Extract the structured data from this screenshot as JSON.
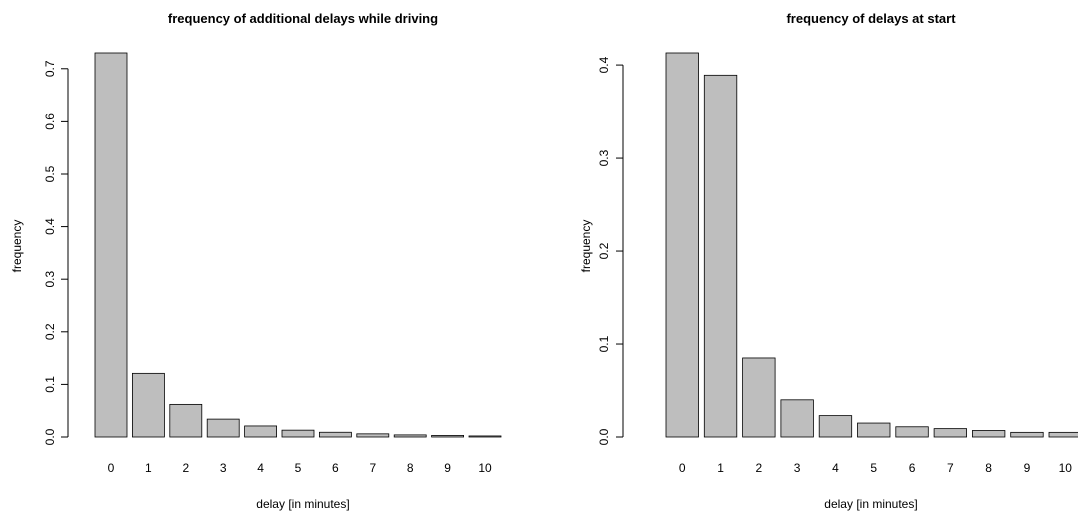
{
  "chart_data": [
    {
      "type": "bar",
      "title": "frequency of additional delays while driving",
      "xlabel": "delay [in minutes]",
      "ylabel": "frequency",
      "categories": [
        "0",
        "1",
        "2",
        "3",
        "4",
        "5",
        "6",
        "7",
        "8",
        "9",
        "10"
      ],
      "values": [
        0.73,
        0.121,
        0.062,
        0.034,
        0.021,
        0.013,
        0.009,
        0.006,
        0.004,
        0.003,
        0.002
      ],
      "yticks": [
        "0.0",
        "0.1",
        "0.2",
        "0.3",
        "0.4",
        "0.5",
        "0.6",
        "0.7"
      ],
      "ylim": [
        0,
        0.73
      ],
      "grid": false,
      "bar_color": "#bebebe"
    },
    {
      "type": "bar",
      "title": "frequency of delays at start",
      "xlabel": "delay [in minutes]",
      "ylabel": "frequency",
      "categories": [
        "0",
        "1",
        "2",
        "3",
        "4",
        "5",
        "6",
        "7",
        "8",
        "9",
        "10"
      ],
      "values": [
        0.413,
        0.389,
        0.085,
        0.04,
        0.023,
        0.015,
        0.011,
        0.009,
        0.007,
        0.005,
        0.005
      ],
      "yticks": [
        "0.0",
        "0.1",
        "0.2",
        "0.3",
        "0.4"
      ],
      "ylim": [
        0,
        0.413
      ],
      "grid": false,
      "bar_color": "#bebebe"
    }
  ]
}
